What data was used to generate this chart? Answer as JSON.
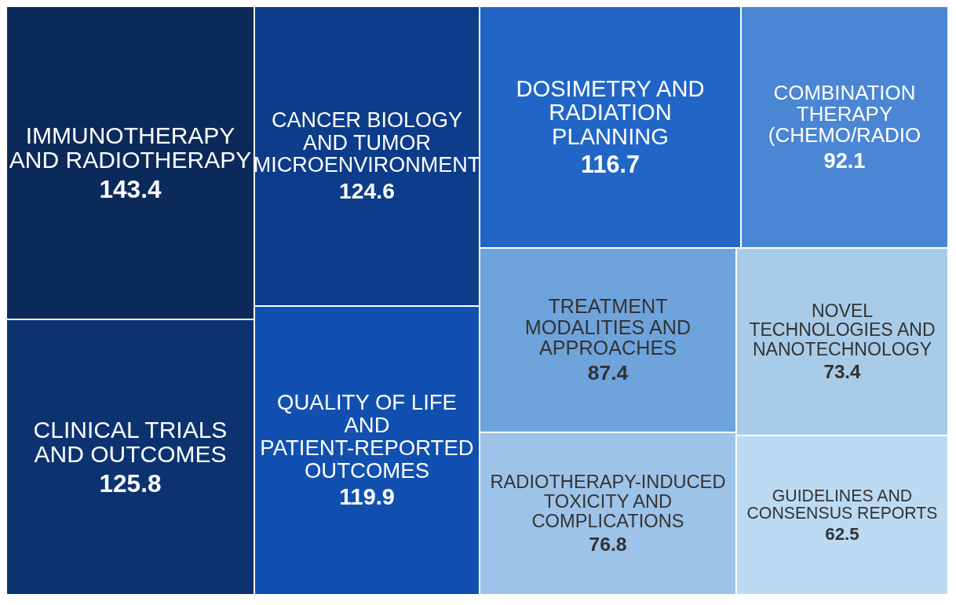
{
  "chart_data": {
    "type": "other",
    "categories": [
      "IMMUNOTHERAPY AND RADIOTHERAPY",
      "CLINICAL TRIALS AND OUTCOMES",
      "CANCER BIOLOGY AND TUMOR MICROENVIRONMENT",
      "QUALITY OF LIFE AND PATIENT-REPORTED OUTCOMES",
      "DOSIMETRY AND RADIATION PLANNING",
      "COMBINATION THERAPY (CHEMO/RADIO",
      "TREATMENT MODALITIES AND APPROACHES",
      "RADIOTHERAPY-INDUCED TOXICITY AND COMPLICATIONS",
      "NOVEL TECHNOLOGIES AND NANOTECHNOLOGY",
      "GUIDELINES AND CONSENSUS REPORTS"
    ],
    "values": [
      143.4,
      125.8,
      124.6,
      119.9,
      116.7,
      92.1,
      87.4,
      76.8,
      73.4,
      62.5
    ],
    "colors": [
      "#0b2a5a",
      "#0c3370",
      "#0d3c8a",
      "#1150b0",
      "#2166c6",
      "#4a86d4",
      "#6fa3dc",
      "#9dc3e8",
      "#a8cbe8",
      "#bcdaf2"
    ],
    "data_labels": true
  }
}
